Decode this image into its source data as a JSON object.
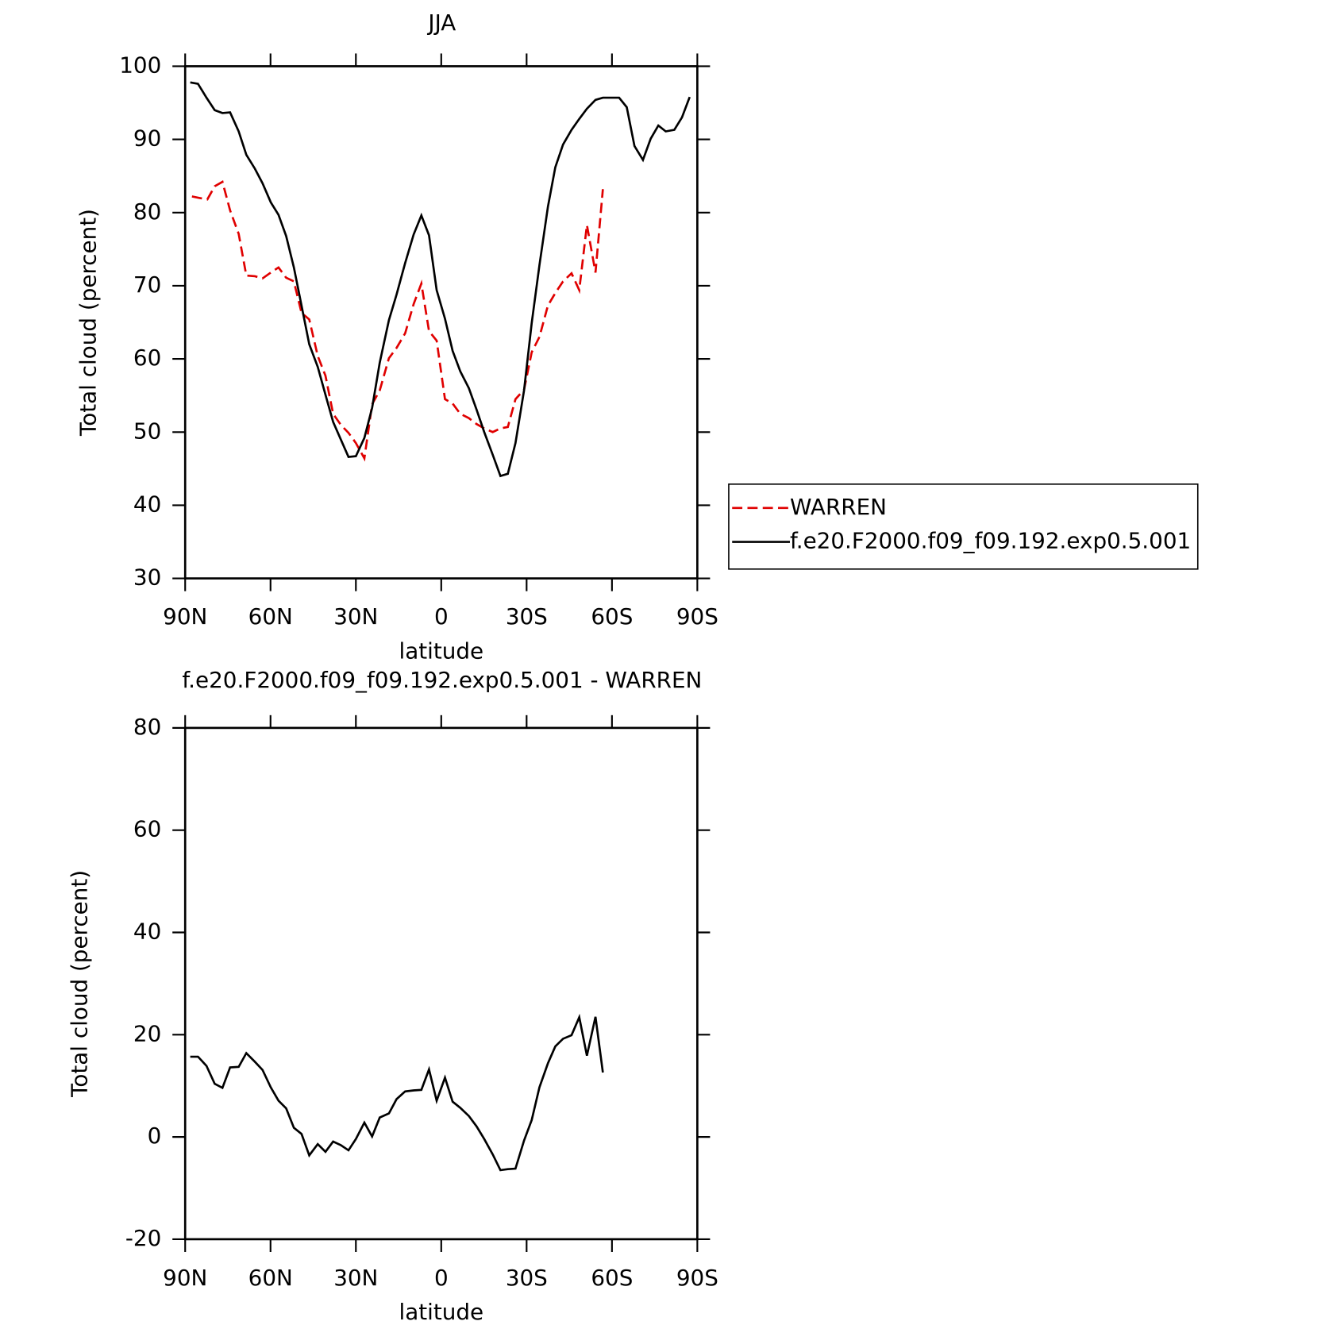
{
  "chart_data": [
    {
      "type": "line",
      "title": "JJA",
      "xlabel": "latitude",
      "ylabel": "Total cloud (percent)",
      "xlim": [
        90,
        -90
      ],
      "ylim": [
        30,
        100
      ],
      "xticks": [
        {
          "value": 90,
          "label": "90N"
        },
        {
          "value": 60,
          "label": "60N"
        },
        {
          "value": 30,
          "label": "30N"
        },
        0,
        {
          "value": -30,
          "label": "30S"
        },
        {
          "value": -60,
          "label": "60S"
        },
        {
          "value": -90,
          "label": "90S"
        }
      ],
      "yticks": [
        30,
        40,
        50,
        60,
        70,
        80,
        90,
        100
      ],
      "legend": "right",
      "series": [
        {
          "name": "WARREN",
          "color": "#e00000",
          "style": "dashed",
          "x": [
            87.6,
            84.9,
            82.2,
            79.6,
            76.9,
            74.2,
            71.2,
            68.5,
            65.5,
            62.8,
            59.9,
            57.2,
            54.5,
            51.8,
            49.1,
            46.4,
            43.4,
            40.7,
            38.0,
            35.3,
            32.6,
            30.0,
            27.0,
            24.3,
            21.6,
            18.4,
            15.7,
            12.7,
            9.7,
            7.0,
            4.3,
            1.6,
            -1.3,
            -4.0,
            -6.7,
            -9.7,
            -12.4,
            -15.1,
            -18.1,
            -20.8,
            -23.4,
            -26.1,
            -29.1,
            -31.8,
            -34.5,
            -37.5,
            -40.1,
            -42.8,
            -45.8,
            -48.5,
            -51.2,
            -54.2,
            -56.8
          ],
          "values": [
            82.2,
            82.0,
            81.8,
            83.6,
            84.2,
            80.3,
            77.1,
            71.4,
            71.3,
            71.0,
            71.8,
            72.5,
            71.1,
            70.6,
            66.3,
            65.4,
            60.4,
            57.7,
            52.5,
            51.0,
            49.9,
            48.5,
            46.4,
            53.8,
            55.7,
            60.1,
            61.5,
            63.5,
            67.5,
            70.3,
            63.8,
            62.5,
            54.5,
            53.9,
            52.5,
            51.9,
            51.1,
            50.5,
            50.0,
            50.5,
            50.7,
            54.5,
            55.8,
            60.9,
            63.0,
            67.3,
            69.0,
            70.6,
            71.7,
            69.4,
            78.3,
            71.8,
            83.2
          ]
        },
        {
          "name": "f.e20.F2000.f09_f09.192.exp0.5.001",
          "color": "#000000",
          "style": "solid",
          "x": [
            88.2,
            85.5,
            82.5,
            79.6,
            76.9,
            74.2,
            71.2,
            68.5,
            65.5,
            62.8,
            59.9,
            57.2,
            54.5,
            51.8,
            49.1,
            46.4,
            43.4,
            40.7,
            38.0,
            35.3,
            32.6,
            30.0,
            27.0,
            24.3,
            21.6,
            18.4,
            15.7,
            12.7,
            9.7,
            7.0,
            4.3,
            1.6,
            -1.3,
            -4.0,
            -6.7,
            -9.7,
            -12.4,
            -15.1,
            -18.1,
            -20.8,
            -23.4,
            -26.1,
            -29.1,
            -31.8,
            -34.5,
            -37.5,
            -40.1,
            -42.8,
            -45.8,
            -48.5,
            -51.2,
            -54.2,
            -56.8,
            -59.8,
            -62.5,
            -65.2,
            -67.9,
            -70.9,
            -73.6,
            -76.3,
            -78.9,
            -81.9,
            -84.6,
            -87.3
          ],
          "values": [
            97.8,
            97.6,
            95.7,
            94.0,
            93.6,
            93.7,
            91.1,
            87.9,
            86.0,
            84.0,
            81.4,
            79.7,
            76.8,
            72.5,
            67.3,
            62.0,
            58.9,
            55.1,
            51.4,
            49.0,
            46.6,
            46.7,
            49.2,
            53.3,
            59.5,
            65.3,
            68.8,
            73.1,
            77.0,
            79.6,
            76.9,
            69.4,
            65.5,
            61.1,
            58.3,
            56.0,
            53.1,
            50.0,
            46.9,
            44.0,
            44.3,
            48.5,
            55.7,
            64.9,
            72.8,
            80.8,
            86.2,
            89.3,
            91.3,
            92.8,
            94.2,
            95.4,
            95.7,
            95.7,
            95.7,
            94.4,
            89.1,
            87.2,
            90.1,
            91.9,
            91.1,
            91.3,
            93.0,
            95.8
          ]
        }
      ]
    },
    {
      "type": "line",
      "title": "f.e20.F2000.f09_f09.192.exp0.5.001 - WARREN",
      "xlabel": "latitude",
      "ylabel": "Total cloud (percent)",
      "xlim": [
        90,
        -90
      ],
      "ylim": [
        -20,
        80
      ],
      "xticks": [
        {
          "value": 90,
          "label": "90N"
        },
        {
          "value": 60,
          "label": "60N"
        },
        {
          "value": 30,
          "label": "30N"
        },
        0,
        {
          "value": -30,
          "label": "30S"
        },
        {
          "value": -60,
          "label": "60S"
        },
        {
          "value": -90,
          "label": "90S"
        }
      ],
      "yticks": [
        -20,
        0,
        20,
        40,
        60,
        80
      ],
      "series": [
        {
          "color": "#000000",
          "style": "solid",
          "x": [
            88.2,
            85.5,
            82.5,
            79.6,
            76.9,
            74.2,
            71.2,
            68.5,
            65.5,
            62.8,
            59.9,
            57.2,
            54.5,
            51.8,
            49.1,
            46.4,
            43.4,
            40.7,
            38.0,
            35.3,
            32.6,
            30.0,
            27.0,
            24.3,
            21.6,
            18.4,
            15.7,
            12.7,
            9.7,
            7.0,
            4.3,
            1.6,
            -1.3,
            -4.0,
            -6.7,
            -9.7,
            -12.4,
            -15.1,
            -18.1,
            -20.8,
            -23.4,
            -26.1,
            -29.1,
            -31.8,
            -34.5,
            -37.5,
            -40.1,
            -42.8,
            -45.8,
            -48.5,
            -51.2,
            -54.2,
            -56.8
          ],
          "values": [
            15.7,
            15.7,
            13.9,
            10.4,
            9.6,
            13.6,
            13.7,
            16.4,
            14.7,
            13.1,
            9.7,
            7.1,
            5.6,
            1.8,
            0.6,
            -3.6,
            -1.4,
            -2.9,
            -0.9,
            -1.6,
            -2.6,
            -0.4,
            2.8,
            0.1,
            3.8,
            4.6,
            7.4,
            8.9,
            9.1,
            9.2,
            13.2,
            7.1,
            11.6,
            6.9,
            5.7,
            4.1,
            2.1,
            -0.4,
            -3.4,
            -6.5,
            -6.3,
            -6.2,
            -0.7,
            3.3,
            9.7,
            14.4,
            17.7,
            19.2,
            19.9,
            23.4,
            15.9,
            23.5,
            12.6
          ]
        }
      ]
    }
  ]
}
